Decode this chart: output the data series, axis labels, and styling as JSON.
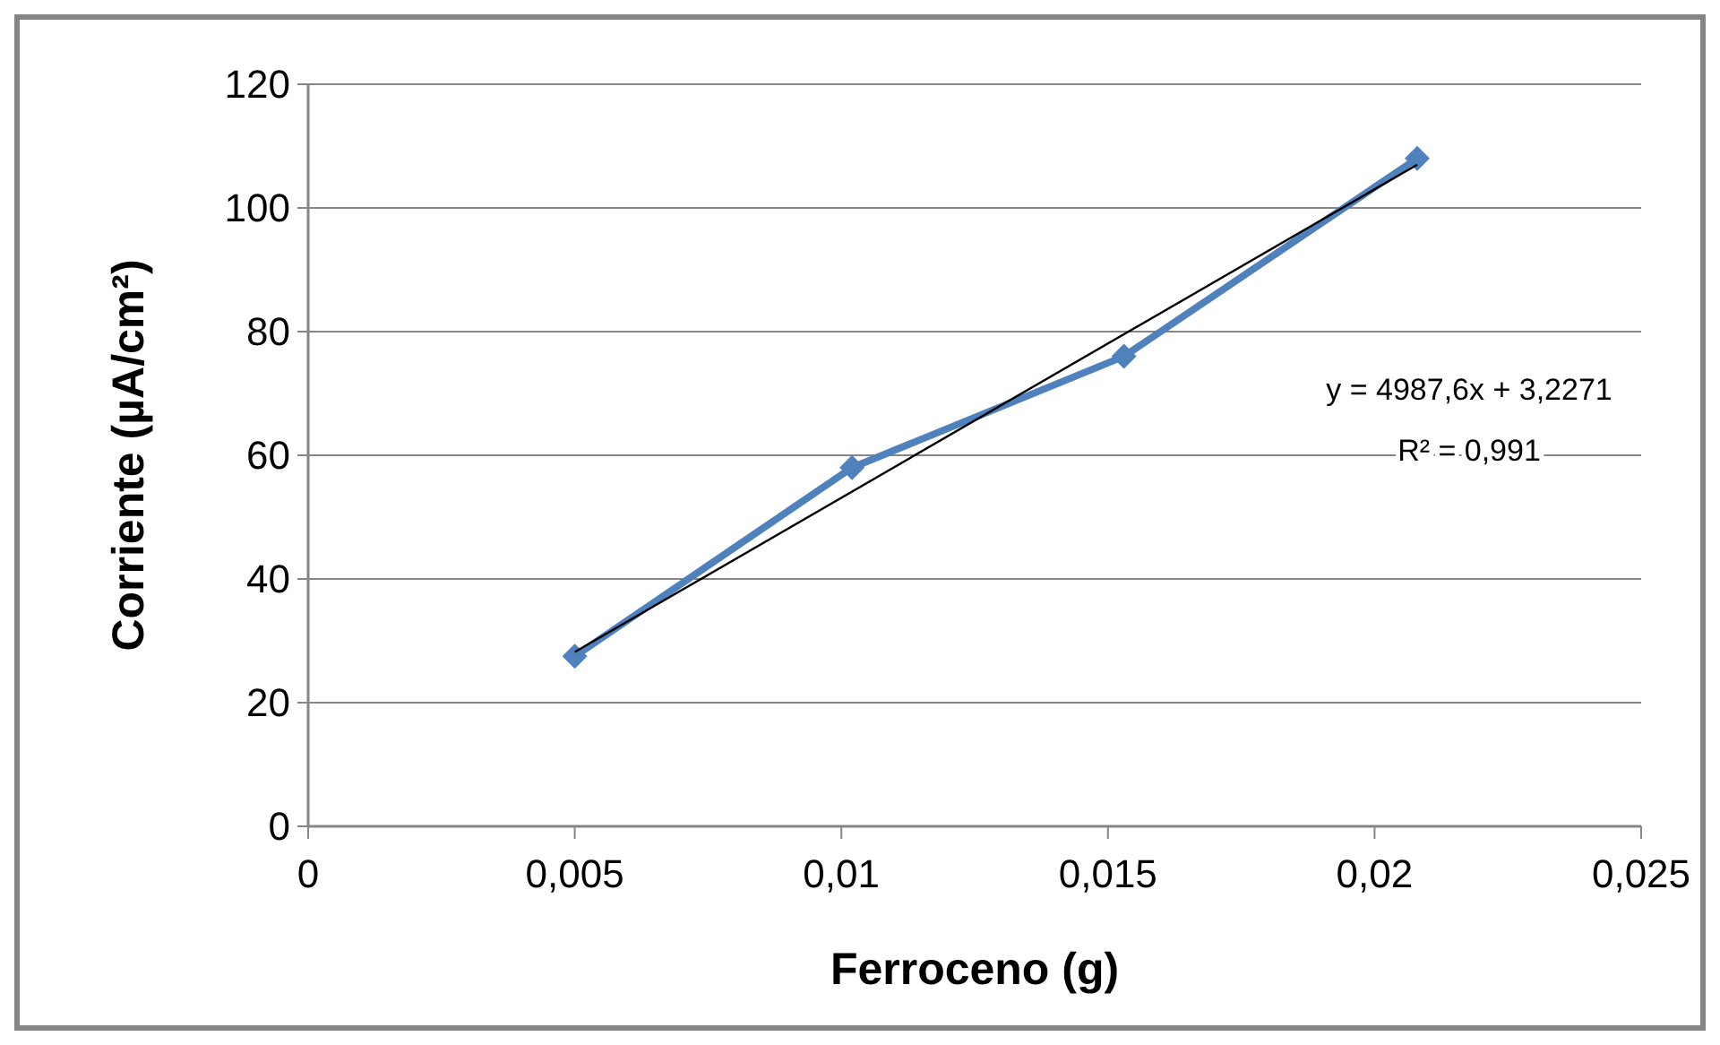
{
  "chart_data": {
    "type": "line",
    "xlabel": "Ferroceno (g)",
    "ylabel": "Corriente (µA/cm²)",
    "x": [
      0.005,
      0.0102,
      0.0153,
      0.0208
    ],
    "series": [
      {
        "color": "#4f81bd",
        "values": [
          27.5,
          58,
          76,
          108
        ],
        "marker": "diamond"
      },
      {
        "type": "line",
        "color": "#000000",
        "x": [
          0.005,
          0.0208
        ],
        "values": [
          28.2,
          107
        ],
        "marker": "none"
      }
    ],
    "xlim": [
      0,
      0.025
    ],
    "xticks": [
      0,
      {
        "value": 0.005,
        "label": "0,005"
      },
      {
        "value": 0.01,
        "label": "0,01"
      },
      {
        "value": 0.015,
        "label": "0,015"
      },
      {
        "value": 0.02,
        "label": "0,02"
      },
      {
        "value": 0.025,
        "label": "0,025"
      }
    ],
    "ylim": [
      0,
      120
    ],
    "yticks": [
      0,
      20,
      40,
      60,
      80,
      100,
      120
    ],
    "grid": "y",
    "annotations": [
      "y = 4987,6x + 3,2271",
      "R² = 0,991"
    ]
  }
}
